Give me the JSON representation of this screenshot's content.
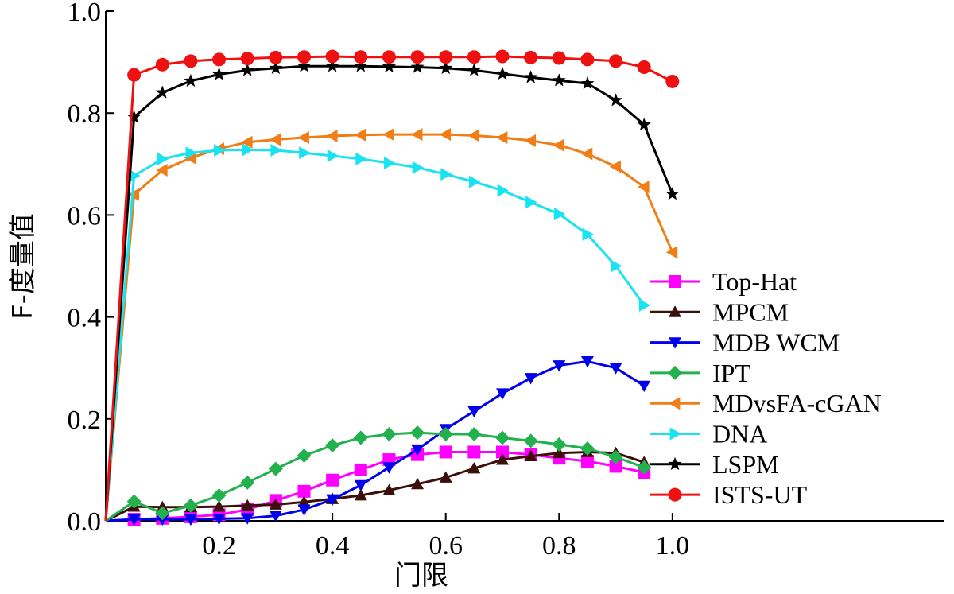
{
  "chart_data": {
    "type": "line",
    "xlabel": "门限",
    "ylabel": "F-度量值",
    "xlim": [
      0,
      1.48
    ],
    "ylim": [
      0,
      1.0
    ],
    "x_ticks": [
      {
        "value": 0.2,
        "label": "0.2"
      },
      {
        "value": 0.4,
        "label": "0.4"
      },
      {
        "value": 0.6,
        "label": "0.6"
      },
      {
        "value": 0.8,
        "label": "0.8"
      },
      {
        "value": 1.0,
        "label": "1.0"
      }
    ],
    "y_ticks": [
      {
        "value": 0.0,
        "label": "0.0"
      },
      {
        "value": 0.2,
        "label": "0.2"
      },
      {
        "value": 0.4,
        "label": "0.4"
      },
      {
        "value": 0.6,
        "label": "0.6"
      },
      {
        "value": 0.8,
        "label": "0.8"
      },
      {
        "value": 1.0,
        "label": "1.0"
      }
    ],
    "grid": false,
    "legend_position": "bottom-right",
    "series": [
      {
        "name": "Top-Hat",
        "color": "#ff00ff",
        "marker": "square",
        "x": [
          0,
          0.05,
          0.1,
          0.15,
          0.2,
          0.25,
          0.3,
          0.35,
          0.4,
          0.45,
          0.5,
          0.55,
          0.6,
          0.65,
          0.7,
          0.75,
          0.8,
          0.85,
          0.9,
          0.95
        ],
        "y": [
          0.0,
          0.003,
          0.005,
          0.008,
          0.012,
          0.022,
          0.04,
          0.058,
          0.08,
          0.1,
          0.12,
          0.13,
          0.135,
          0.135,
          0.135,
          0.13,
          0.123,
          0.117,
          0.107,
          0.095
        ]
      },
      {
        "name": "MPCM",
        "color": "#3d0f0a",
        "marker": "triangle-up",
        "x": [
          0,
          0.05,
          0.1,
          0.15,
          0.2,
          0.25,
          0.3,
          0.35,
          0.4,
          0.45,
          0.5,
          0.55,
          0.6,
          0.65,
          0.7,
          0.75,
          0.8,
          0.85,
          0.9,
          0.95
        ],
        "y": [
          0.0,
          0.028,
          0.027,
          0.027,
          0.028,
          0.03,
          0.032,
          0.037,
          0.043,
          0.05,
          0.06,
          0.072,
          0.085,
          0.103,
          0.12,
          0.127,
          0.133,
          0.135,
          0.133,
          0.115
        ]
      },
      {
        "name": "MDB WCM",
        "color": "#0000ee",
        "marker": "triangle-down",
        "x": [
          0,
          0.05,
          0.1,
          0.15,
          0.2,
          0.25,
          0.3,
          0.35,
          0.4,
          0.45,
          0.5,
          0.55,
          0.6,
          0.65,
          0.7,
          0.75,
          0.8,
          0.85,
          0.9,
          0.95
        ],
        "y": [
          0.0,
          0.003,
          0.003,
          0.003,
          0.004,
          0.005,
          0.01,
          0.022,
          0.042,
          0.07,
          0.105,
          0.14,
          0.18,
          0.215,
          0.25,
          0.28,
          0.305,
          0.313,
          0.3,
          0.265
        ]
      },
      {
        "name": "IPT",
        "color": "#22b14c",
        "marker": "diamond",
        "x": [
          0,
          0.05,
          0.1,
          0.15,
          0.2,
          0.25,
          0.3,
          0.35,
          0.4,
          0.45,
          0.5,
          0.55,
          0.6,
          0.65,
          0.7,
          0.75,
          0.8,
          0.85,
          0.9,
          0.95
        ],
        "y": [
          0.0,
          0.038,
          0.015,
          0.03,
          0.05,
          0.075,
          0.102,
          0.128,
          0.148,
          0.163,
          0.17,
          0.173,
          0.17,
          0.17,
          0.163,
          0.157,
          0.15,
          0.142,
          0.125,
          0.105
        ]
      },
      {
        "name": "MDvsFA-cGAN",
        "color": "#f07d16",
        "marker": "triangle-left",
        "x": [
          0,
          0.05,
          0.1,
          0.15,
          0.2,
          0.25,
          0.3,
          0.35,
          0.4,
          0.45,
          0.5,
          0.55,
          0.6,
          0.65,
          0.7,
          0.75,
          0.8,
          0.85,
          0.9,
          0.95,
          1.0
        ],
        "y": [
          0.0,
          0.64,
          0.688,
          0.712,
          0.73,
          0.743,
          0.748,
          0.752,
          0.755,
          0.757,
          0.758,
          0.758,
          0.758,
          0.756,
          0.752,
          0.746,
          0.737,
          0.72,
          0.695,
          0.655,
          0.527
        ]
      },
      {
        "name": "DNA",
        "color": "#19e3f0",
        "marker": "triangle-right",
        "x": [
          0,
          0.05,
          0.1,
          0.15,
          0.2,
          0.25,
          0.3,
          0.35,
          0.4,
          0.45,
          0.5,
          0.55,
          0.6,
          0.65,
          0.7,
          0.75,
          0.8,
          0.85,
          0.9,
          0.95
        ],
        "y": [
          0.0,
          0.677,
          0.71,
          0.722,
          0.727,
          0.728,
          0.727,
          0.722,
          0.716,
          0.71,
          0.702,
          0.693,
          0.68,
          0.665,
          0.648,
          0.625,
          0.602,
          0.562,
          0.5,
          0.423
        ]
      },
      {
        "name": "LSPM",
        "color": "#000000",
        "marker": "star",
        "x": [
          0,
          0.05,
          0.1,
          0.15,
          0.2,
          0.25,
          0.3,
          0.35,
          0.4,
          0.45,
          0.5,
          0.55,
          0.6,
          0.65,
          0.7,
          0.75,
          0.8,
          0.85,
          0.9,
          0.95,
          1.0
        ],
        "y": [
          0.0,
          0.792,
          0.84,
          0.863,
          0.876,
          0.884,
          0.888,
          0.892,
          0.892,
          0.892,
          0.891,
          0.89,
          0.888,
          0.884,
          0.877,
          0.87,
          0.864,
          0.858,
          0.825,
          0.777,
          0.641
        ]
      },
      {
        "name": "ISTS-UT",
        "color": "#ee1111",
        "marker": "circle",
        "x": [
          0,
          0.05,
          0.1,
          0.15,
          0.2,
          0.25,
          0.3,
          0.35,
          0.4,
          0.45,
          0.5,
          0.55,
          0.6,
          0.65,
          0.7,
          0.75,
          0.8,
          0.85,
          0.9,
          0.95,
          1.0
        ],
        "y": [
          0.0,
          0.875,
          0.895,
          0.902,
          0.905,
          0.907,
          0.909,
          0.91,
          0.911,
          0.91,
          0.91,
          0.91,
          0.91,
          0.91,
          0.911,
          0.909,
          0.908,
          0.905,
          0.902,
          0.89,
          0.862
        ]
      }
    ]
  }
}
